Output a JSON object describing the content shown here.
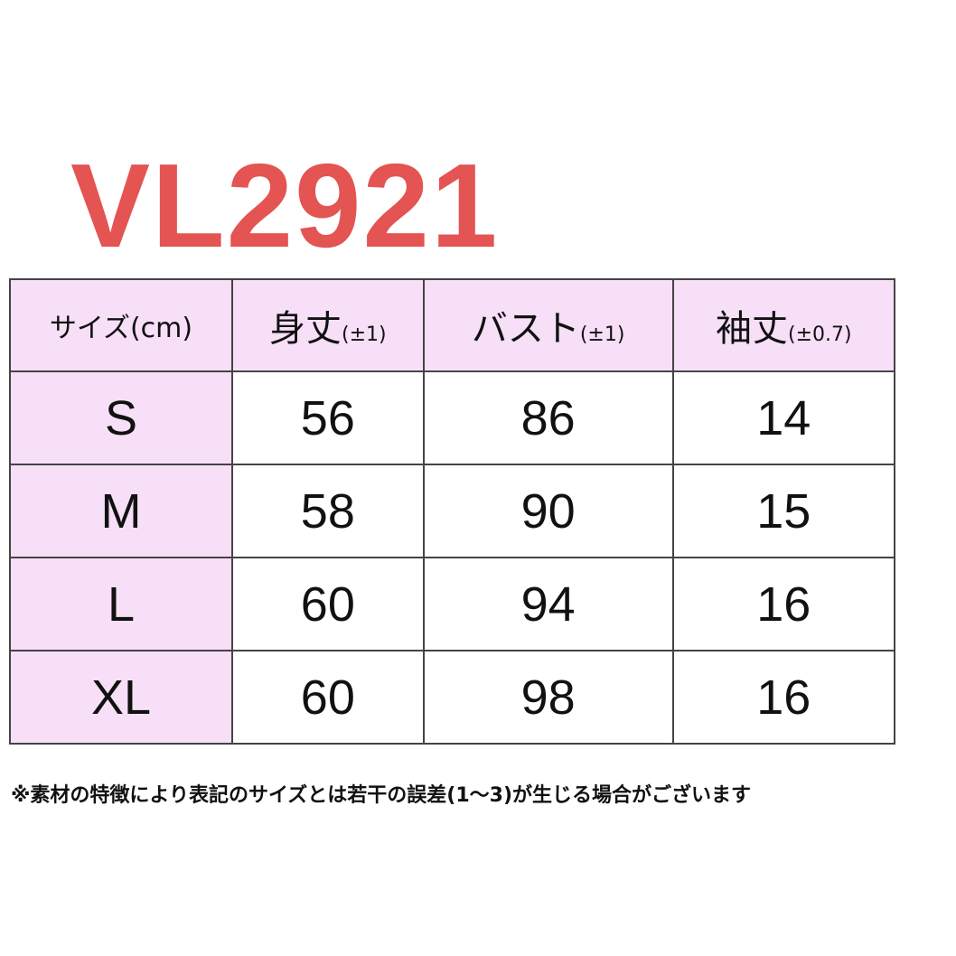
{
  "title": "VL2921",
  "colors": {
    "title": "#e35452",
    "header_bg": "#f7dff7",
    "border": "#444444"
  },
  "table": {
    "headers": [
      {
        "label": "サイズ(cm)",
        "tolerance": ""
      },
      {
        "label": "身丈",
        "tolerance": "(±1)"
      },
      {
        "label": "バスト",
        "tolerance": "(±1)"
      },
      {
        "label": "袖丈",
        "tolerance": "(±0.7)"
      }
    ],
    "rows": [
      [
        "S",
        "56",
        "86",
        "14"
      ],
      [
        "M",
        "58",
        "90",
        "15"
      ],
      [
        "L",
        "60",
        "94",
        "16"
      ],
      [
        "XL",
        "60",
        "98",
        "16"
      ]
    ]
  },
  "note": "※素材の特徴により表記のサイズとは若干の誤差(1～3)が生じる場合がございます"
}
